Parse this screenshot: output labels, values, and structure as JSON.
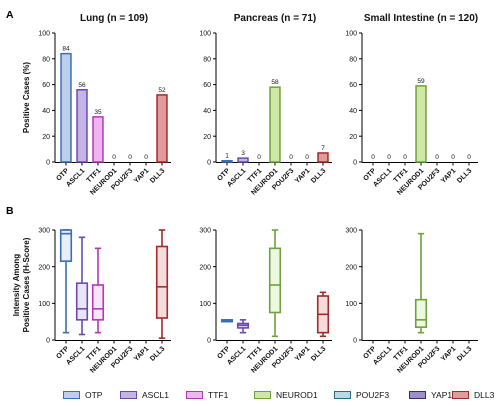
{
  "panel_letters": {
    "a": "A",
    "b": "B"
  },
  "chart_data": [
    {
      "type": "bar",
      "panel": "A",
      "title": "Lung (n = 109)",
      "ylabel": "Positive Cases (%)",
      "ylim": [
        0,
        100
      ],
      "yticks": [
        0,
        20,
        40,
        60,
        80,
        100
      ],
      "categories": [
        "OTP",
        "ASCL1",
        "TTF1",
        "NEUROD1",
        "POU2F3",
        "YAP1",
        "DLL3"
      ],
      "values": [
        84,
        56,
        35,
        0,
        0,
        0,
        52
      ],
      "value_labels": [
        "84",
        "56",
        "35",
        "0",
        "0",
        "0",
        "52"
      ]
    },
    {
      "type": "bar",
      "panel": "A",
      "title": "Pancreas (n = 71)",
      "ylabel": "",
      "ylim": [
        0,
        100
      ],
      "yticks": [
        0,
        20,
        40,
        60,
        80,
        100
      ],
      "categories": [
        "OTP",
        "ASCL1",
        "TTF1",
        "NEUROD1",
        "POU2F3",
        "YAP1",
        "DLL3"
      ],
      "values": [
        1,
        3,
        0,
        58,
        0,
        0,
        7
      ],
      "value_labels": [
        "1",
        "3",
        "0",
        "58",
        "0",
        "0",
        "7"
      ]
    },
    {
      "type": "bar",
      "panel": "A",
      "title": "Small Intestine (n = 120)",
      "ylabel": "",
      "ylim": [
        0,
        100
      ],
      "yticks": [
        0,
        20,
        40,
        60,
        80,
        100
      ],
      "categories": [
        "OTP",
        "ASCL1",
        "TTF1",
        "NEUROD1",
        "POU2F3",
        "YAP1",
        "DLL3"
      ],
      "values": [
        0,
        0,
        0,
        59,
        0,
        0,
        0
      ],
      "value_labels": [
        "0",
        "0",
        "0",
        "59",
        "0",
        "0",
        "0"
      ]
    },
    {
      "type": "box",
      "panel": "B",
      "title": "",
      "ylabel": "Intensity Among Positive Cases (H-Score)",
      "ylim": [
        0,
        300
      ],
      "yticks": [
        0,
        100,
        200,
        300
      ],
      "categories": [
        "OTP",
        "ASCL1",
        "TTF1",
        "NEUROD1",
        "POU2F3",
        "YAP1",
        "DLL3"
      ],
      "boxes": [
        {
          "min": 20,
          "q1": 215,
          "median": 290,
          "q3": 300,
          "max": 300
        },
        {
          "min": 15,
          "q1": 55,
          "median": 85,
          "q3": 155,
          "max": 280
        },
        {
          "min": 20,
          "q1": 55,
          "median": 85,
          "q3": 150,
          "max": 250
        },
        null,
        null,
        null,
        {
          "min": 5,
          "q1": 60,
          "median": 145,
          "q3": 255,
          "max": 300
        }
      ]
    },
    {
      "type": "box",
      "panel": "B",
      "title": "",
      "ylabel": "",
      "ylim": [
        0,
        300
      ],
      "yticks": [
        0,
        100,
        200,
        300
      ],
      "categories": [
        "OTP",
        "ASCL1",
        "TTF1",
        "NEUROD1",
        "POU2F3",
        "YAP1",
        "DLL3"
      ],
      "boxes": [
        {
          "min": 50,
          "q1": 50,
          "median": 52,
          "q3": 55,
          "max": 55
        },
        {
          "min": 20,
          "q1": 33,
          "median": 40,
          "q3": 45,
          "max": 55
        },
        null,
        {
          "min": 10,
          "q1": 75,
          "median": 150,
          "q3": 250,
          "max": 300
        },
        null,
        null,
        {
          "min": 10,
          "q1": 20,
          "median": 70,
          "q3": 120,
          "max": 130
        }
      ]
    },
    {
      "type": "box",
      "panel": "B",
      "title": "",
      "ylabel": "",
      "ylim": [
        0,
        300
      ],
      "yticks": [
        0,
        100,
        200,
        300
      ],
      "categories": [
        "OTP",
        "ASCL1",
        "TTF1",
        "NEUROD1",
        "POU2F3",
        "YAP1",
        "DLL3"
      ],
      "boxes": [
        null,
        null,
        null,
        {
          "min": 20,
          "q1": 35,
          "median": 55,
          "q3": 110,
          "max": 290
        },
        null,
        null,
        null
      ]
    }
  ],
  "markers": {
    "OTP": {
      "fill": "#bcd0ec",
      "stroke": "#3f6db3"
    },
    "ASCL1": {
      "fill": "#c4b5e6",
      "stroke": "#6a4bab"
    },
    "TTF1": {
      "fill": "#f0b4f0",
      "stroke": "#b238b6"
    },
    "NEUROD1": {
      "fill": "#cfe8a8",
      "stroke": "#6ea23a"
    },
    "POU2F3": {
      "fill": "#b5dbe6",
      "stroke": "#2e6b7f"
    },
    "YAP1": {
      "fill": "#9e8ec9",
      "stroke": "#3d2b7a"
    },
    "DLL3": {
      "fill": "#e29a9a",
      "stroke": "#a32a2a"
    }
  },
  "legend": [
    {
      "label": "OTP",
      "fill": "#bcd0ec",
      "stroke": "#3f6db3"
    },
    {
      "label": "ASCL1",
      "fill": "#c4b5e6",
      "stroke": "#6a4bab"
    },
    {
      "label": "TTF1",
      "fill": "#f0b4f0",
      "stroke": "#b238b6"
    },
    {
      "label": "NEUROD1",
      "fill": "#cfe8a8",
      "stroke": "#6ea23a"
    },
    {
      "label": "POU2F3",
      "fill": "#b5dbe6",
      "stroke": "#2e6b7f"
    },
    {
      "label": "YAP1",
      "fill": "#9e8ec9",
      "stroke": "#3d2b7a"
    },
    {
      "label": "DLL3",
      "fill": "#e29a9a",
      "stroke": "#a32a2a"
    }
  ]
}
